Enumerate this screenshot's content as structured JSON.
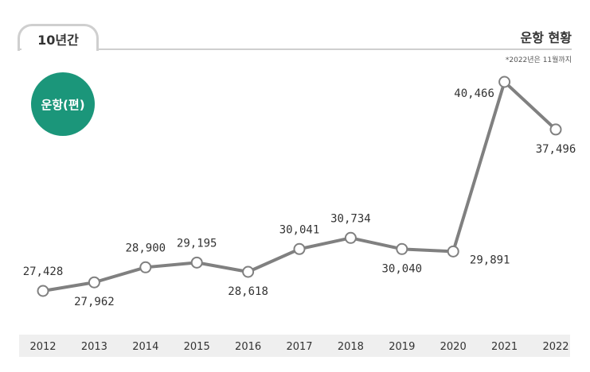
{
  "header": {
    "tab_label": "10년간",
    "section_title": "운항 현황",
    "note": "*2022년은 11월까지"
  },
  "badge": {
    "label": "운항(편)"
  },
  "colors": {
    "line": "#808080",
    "badge": "#1b967a",
    "axis_band": "#efefef"
  },
  "chart_data": {
    "type": "line",
    "title": "",
    "xlabel": "",
    "ylabel": "",
    "x": [
      "2012",
      "2013",
      "2014",
      "2015",
      "2016",
      "2017",
      "2018",
      "2019",
      "2020",
      "2021",
      "2022"
    ],
    "series": [
      {
        "name": "",
        "values": [
          27428,
          27962,
          28900,
          29195,
          28618,
          30041,
          30734,
          30040,
          29891,
          40466,
          37496
        ],
        "labels": [
          "27,428",
          "27,962",
          "28,900",
          "29,195",
          "28,618",
          "30,041",
          "30,734",
          "30,040",
          "29,891",
          "40,466",
          "37,496"
        ]
      }
    ],
    "label_placement": [
      "above",
      "below",
      "above",
      "above",
      "below",
      "above",
      "above",
      "below",
      "below-right",
      "left",
      "below"
    ],
    "grid": false,
    "legend": "none"
  }
}
